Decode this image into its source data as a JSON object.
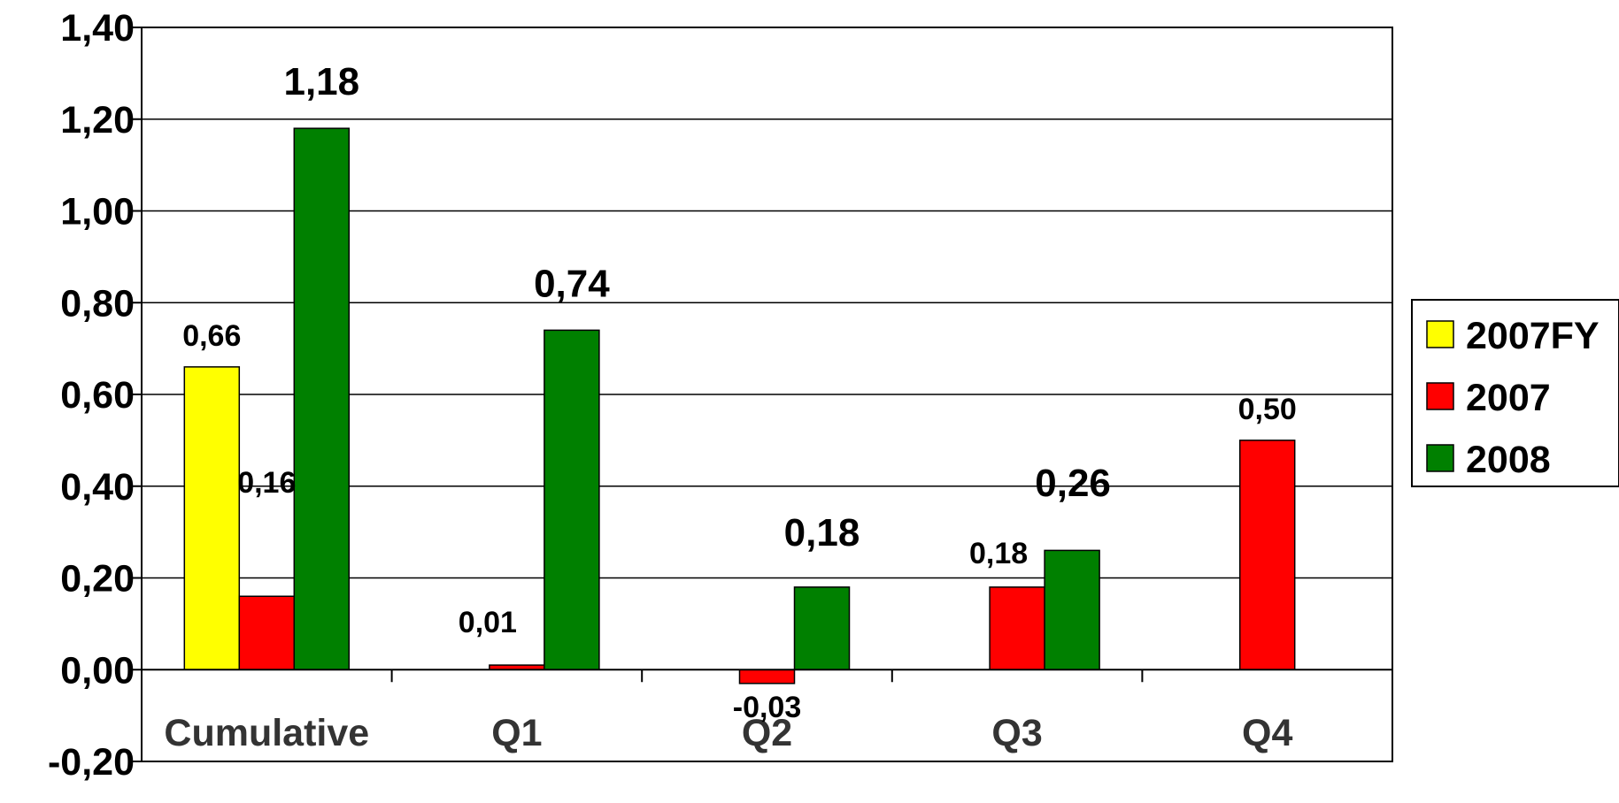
{
  "chart_data": {
    "type": "bar",
    "title": "",
    "xlabel": "",
    "ylabel": "",
    "categories": [
      "Cumulative",
      "Q1",
      "Q2",
      "Q3",
      "Q4"
    ],
    "series": [
      {
        "name": "2007FY",
        "color": "#FFFF00",
        "values": [
          0.66,
          null,
          null,
          null,
          null
        ],
        "labels": [
          "0,66",
          null,
          null,
          null,
          null
        ]
      },
      {
        "name": "2007",
        "color": "#FF0000",
        "values": [
          0.16,
          0.01,
          -0.03,
          0.18,
          0.5
        ],
        "labels": [
          "0,16",
          "0,01",
          "-0,03",
          "0,18",
          "0,50"
        ]
      },
      {
        "name": "2008",
        "color": "#008000",
        "values": [
          1.18,
          0.74,
          0.18,
          0.26,
          null
        ],
        "labels": [
          "1,18",
          "0,74",
          "0,18",
          "0,26",
          null
        ]
      }
    ],
    "ylim": [
      -0.2,
      1.4
    ],
    "yticks": [
      -0.2,
      0.0,
      0.2,
      0.4,
      0.6,
      0.8,
      1.0,
      1.2,
      1.4
    ],
    "ytick_labels": [
      "-0,20",
      "0,00",
      "0,20",
      "0,40",
      "0,60",
      "0,80",
      "1,00",
      "1,20",
      "1,40"
    ],
    "grid": true,
    "legend_position": "right"
  }
}
